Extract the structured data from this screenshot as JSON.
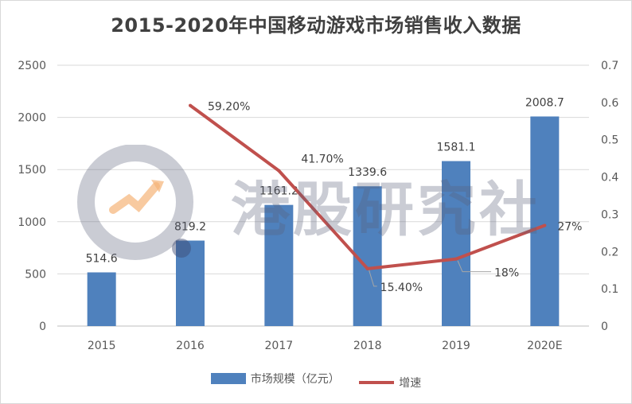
{
  "chart_data": {
    "type": "bar",
    "title": "2015-2020年中国移动游戏市场销售收入数据",
    "categories": [
      "2015",
      "2016",
      "2017",
      "2018",
      "2019",
      "2020E"
    ],
    "series": [
      {
        "name": "市场规模（亿元）",
        "type": "bar",
        "axis": "left",
        "color": "#4f81bd",
        "values": [
          514.6,
          819.2,
          1161.2,
          1339.6,
          1581.1,
          2008.7
        ],
        "labels": [
          "514.6",
          "819.2",
          "1161.2",
          "1339.6",
          "1581.1",
          "2008.7"
        ]
      },
      {
        "name": "增速",
        "type": "line",
        "axis": "right",
        "color": "#c0504d",
        "values": [
          null,
          0.592,
          0.417,
          0.154,
          0.18,
          0.27
        ],
        "labels": [
          "",
          "59.20%",
          "41.70%",
          "15.40%",
          "18%",
          "27%"
        ]
      }
    ],
    "left_axis": {
      "ylim": [
        0,
        2500
      ],
      "ticks": [
        "0",
        "500",
        "1000",
        "1500",
        "2000",
        "2500"
      ]
    },
    "right_axis": {
      "ylim": [
        0,
        0.7
      ],
      "ticks": [
        "0",
        "0.1",
        "0.2",
        "0.3",
        "0.4",
        "0.5",
        "0.6",
        "0.7"
      ]
    },
    "grid": true,
    "legend_position": "bottom"
  },
  "watermark": {
    "text": "港股研究社"
  }
}
